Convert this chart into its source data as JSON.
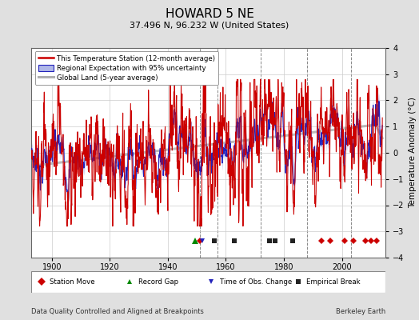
{
  "title": "HOWARD 5 NE",
  "subtitle": "37.496 N, 96.232 W (United States)",
  "ylabel": "Temperature Anomaly (°C)",
  "xlabel_left": "Data Quality Controlled and Aligned at Breakpoints",
  "xlabel_right": "Berkeley Earth",
  "ylim": [
    -4,
    4
  ],
  "xlim": [
    1893,
    2015
  ],
  "yticks": [
    -4,
    -3,
    -2,
    -1,
    0,
    1,
    2,
    3,
    4
  ],
  "xticks": [
    1900,
    1920,
    1940,
    1960,
    1980,
    2000
  ],
  "bg_color": "#e0e0e0",
  "plot_bg_color": "#ffffff",
  "grid_color": "#cccccc",
  "red_color": "#cc0000",
  "blue_color": "#2222bb",
  "blue_fill_color": "#b0b8e8",
  "gray_color": "#b0b0b0",
  "station_move_color": "#cc0000",
  "record_gap_color": "#008800",
  "obs_change_color": "#2222bb",
  "empirical_break_color": "#222222",
  "marker_y": -3.35,
  "station_move_years": [
    1951,
    1993,
    1996,
    2001,
    2004,
    2008,
    2010,
    2012
  ],
  "record_gap_years": [
    1951
  ],
  "obs_change_years": [
    1951
  ],
  "empirical_break_years": [
    1956,
    1963,
    1975,
    1977,
    1983
  ],
  "vertical_lines": [
    1951,
    1957,
    1972,
    1988,
    2003
  ]
}
